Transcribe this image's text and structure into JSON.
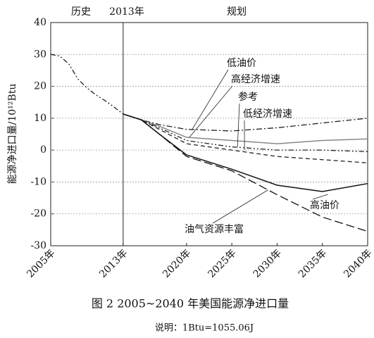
{
  "chart_data": {
    "type": "line",
    "caption": "图 2  2005~2040 年美国能源净进口量",
    "note": "说明：1Btu=1055.06J",
    "y_label": "能源净进口量/10¹²Btu",
    "annotations": [
      "历史",
      "2013年",
      "规划"
    ],
    "divider_x": 2013,
    "x": [
      2005,
      2006,
      2007,
      2008,
      2009,
      2010,
      2011,
      2012,
      2013,
      2015,
      2017,
      2020,
      2025,
      2030,
      2035,
      2040
    ],
    "series": [
      {
        "name": "低油价",
        "color": "#222",
        "style": "dash-dot",
        "values": [
          null,
          null,
          null,
          null,
          null,
          null,
          null,
          null,
          11.3,
          9.5,
          8,
          6.5,
          6,
          7,
          8.5,
          10
        ]
      },
      {
        "name": "高经济增速",
        "color": "#888",
        "style": "solid",
        "values": [
          null,
          null,
          null,
          null,
          null,
          null,
          null,
          null,
          11.3,
          9.5,
          7.5,
          4,
          3,
          2,
          3,
          3.5
        ]
      },
      {
        "name": "参考",
        "color": "#222",
        "style": "dash-dot-dot",
        "values": [
          30,
          29.5,
          27,
          22.3,
          19.5,
          17.3,
          15.5,
          13.5,
          11.3,
          9.5,
          7,
          3,
          1,
          0,
          0,
          -0.5
        ]
      },
      {
        "name": "低经济增速",
        "color": "#222",
        "style": "dash",
        "values": [
          null,
          null,
          null,
          null,
          null,
          null,
          null,
          null,
          11.3,
          9.5,
          6.5,
          2,
          0,
          -2,
          -3,
          -4
        ]
      },
      {
        "name": "高油价",
        "color": "#111",
        "style": "solid",
        "values": [
          null,
          null,
          null,
          null,
          null,
          null,
          null,
          null,
          11.3,
          9.5,
          5,
          -1.5,
          -6,
          -11,
          -13,
          -10.5
        ]
      },
      {
        "name": "油气资源丰富",
        "color": "#111",
        "style": "long-dash",
        "values": [
          null,
          null,
          null,
          null,
          null,
          null,
          null,
          null,
          11.3,
          9.5,
          5,
          -2,
          -6.5,
          -14,
          -21,
          -25.5
        ]
      }
    ],
    "xlim": [
      2005,
      2040
    ],
    "xticks": [
      {
        "value": 2005,
        "label": "2005年"
      },
      {
        "value": 2013,
        "label": "2013年"
      },
      {
        "value": 2020,
        "label": "2020年"
      },
      {
        "value": 2025,
        "label": "2025年"
      },
      {
        "value": 2030,
        "label": "2030年"
      },
      {
        "value": 2035,
        "label": "2035年"
      },
      {
        "value": 2040,
        "label": "2040年"
      }
    ],
    "ylim": [
      -30,
      40
    ],
    "yticks": [
      -30,
      -20,
      -10,
      0,
      10,
      20,
      30,
      40
    ],
    "grid": true
  }
}
